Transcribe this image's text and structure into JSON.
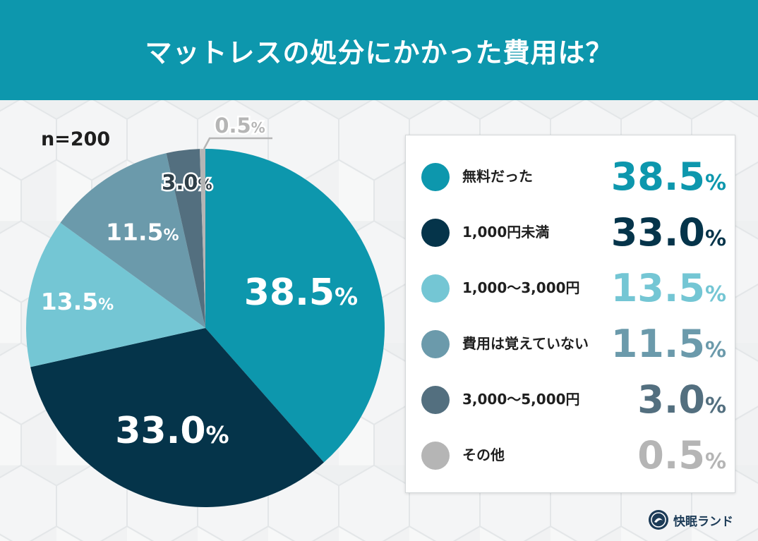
{
  "header": {
    "title": "マットレスの処分にかかった費用は？"
  },
  "sample_size": "n=200",
  "chart_data": {
    "type": "pie",
    "title": "マットレスの処分にかかった費用は？",
    "unit": "%",
    "categories": [
      "無料だった",
      "1,000円未満",
      "1,000〜3,000円",
      "費用は覚えていない",
      "3,000〜5,000円",
      "その他"
    ],
    "values": [
      38.5,
      33.0,
      13.5,
      11.5,
      3.0,
      0.5
    ],
    "labels": [
      "38.5",
      "33.0",
      "13.5",
      "11.5",
      "3.0",
      "0.5"
    ],
    "colors": [
      "#0d97ad",
      "#05344a",
      "#74c6d4",
      "#6b9aab",
      "#536f7f",
      "#b5b5b5"
    ],
    "legend_position": "right"
  },
  "legend": {
    "items": [
      {
        "label": "無料だった",
        "value": "38.5",
        "unit": "%",
        "color": "#0d97ad"
      },
      {
        "label": "1,000円未満",
        "value": "33.0",
        "unit": "%",
        "color": "#05344a"
      },
      {
        "label": "1,000〜3,000円",
        "value": "13.5",
        "unit": "%",
        "color": "#74c6d4"
      },
      {
        "label": "費用は覚えていない",
        "value": "11.5",
        "unit": "%",
        "color": "#6b9aab"
      },
      {
        "label": "3,000〜5,000円",
        "value": "3.0",
        "unit": "%",
        "color": "#536f7f"
      },
      {
        "label": "その他",
        "value": "0.5",
        "unit": "%",
        "color": "#b5b5b5"
      }
    ]
  },
  "logo": {
    "text": "快眠ランド",
    "icon": "kaimin-land-logo-icon"
  }
}
